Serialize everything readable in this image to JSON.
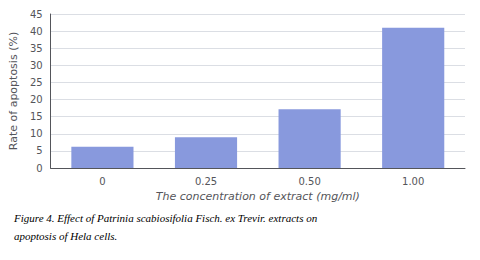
{
  "chart_data": {
    "type": "bar",
    "categories": [
      "0",
      "0.25",
      "0.50",
      "1.00"
    ],
    "values": [
      6.2,
      9.0,
      17.2,
      41.0
    ],
    "color": "#8899dd",
    "ylim": [
      0,
      45
    ],
    "yticks": [
      0,
      5,
      10,
      15,
      20,
      25,
      30,
      35,
      40,
      45
    ],
    "ylabel": "Rate of apoptosis (%)",
    "xlabel": "The concentration of extract (mg/ml)",
    "grid": true,
    "annotations": [
      "Figure 4. Effect of Patrinia scabiosifolia Fisch. ex Trevir. extracts on",
      "apoptosis of Hela cells."
    ]
  }
}
